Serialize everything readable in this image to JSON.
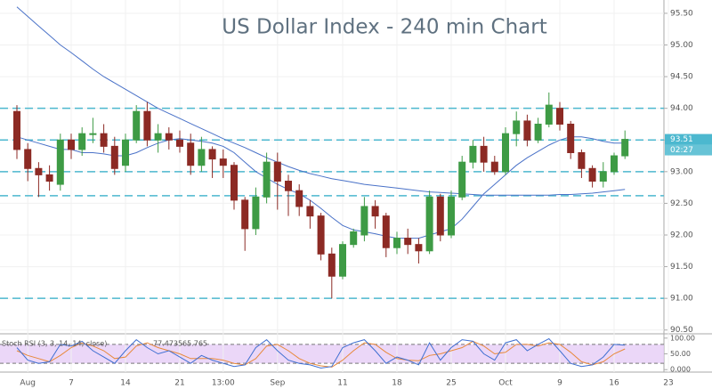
{
  "chart_data": {
    "type": "candlestick",
    "title": "US Dollar Index - 240 min Chart",
    "categories": [
      null,
      "Aug",
      null,
      null,
      null,
      "7",
      null,
      null,
      null,
      null,
      "14",
      null,
      null,
      null,
      null,
      "21",
      null,
      null,
      null,
      "13:00",
      null,
      null,
      null,
      null,
      "Sep",
      null,
      null,
      null,
      null,
      null,
      "11",
      null,
      null,
      null,
      null,
      "18",
      null,
      null,
      null,
      null,
      "25",
      null,
      null,
      null,
      null,
      "Oct",
      null,
      null,
      null,
      null,
      "9",
      null,
      null,
      null,
      null,
      "16",
      null,
      null,
      null,
      null,
      "23"
    ],
    "open": [
      93.95,
      93.35,
      93.05,
      92.95,
      92.8,
      93.5,
      93.35,
      93.6,
      93.6,
      93.4,
      93.1,
      93.5,
      93.95,
      93.5,
      93.6,
      93.5,
      93.45,
      93.1,
      93.35,
      93.2,
      93.1,
      92.55,
      92.1,
      92.6,
      93.15,
      92.85,
      92.7,
      92.45,
      92.3,
      91.7,
      91.35,
      91.85,
      92.0,
      92.45,
      92.3,
      91.8,
      91.95,
      91.85,
      91.75,
      92.6,
      92.0,
      92.6,
      93.15,
      93.4,
      93.15,
      93.0,
      93.6,
      93.8,
      93.5,
      93.75,
      94.0,
      93.75,
      93.3,
      93.05,
      92.85,
      93.0,
      93.25,
      null,
      null,
      null,
      null
    ],
    "high": [
      94.05,
      93.45,
      93.15,
      93.1,
      93.6,
      93.6,
      93.7,
      93.85,
      93.75,
      93.55,
      93.6,
      94.05,
      94.1,
      93.75,
      93.7,
      93.65,
      93.6,
      93.55,
      93.4,
      93.35,
      93.15,
      92.6,
      92.75,
      93.3,
      93.3,
      92.95,
      92.8,
      92.55,
      92.35,
      91.8,
      91.9,
      92.1,
      92.6,
      92.55,
      92.35,
      92.05,
      92.1,
      91.95,
      92.7,
      92.65,
      92.7,
      93.25,
      93.5,
      93.55,
      93.25,
      93.7,
      93.95,
      93.9,
      93.85,
      94.25,
      94.1,
      93.8,
      93.35,
      93.1,
      93.15,
      93.3,
      93.65,
      null,
      null,
      null,
      null
    ],
    "low": [
      93.2,
      92.85,
      92.6,
      92.7,
      92.7,
      93.2,
      93.25,
      93.45,
      93.3,
      92.95,
      93.0,
      93.45,
      93.4,
      93.3,
      93.35,
      93.3,
      92.95,
      93.0,
      92.9,
      92.9,
      92.4,
      91.75,
      92.0,
      92.5,
      92.4,
      92.3,
      92.3,
      92.1,
      91.6,
      91.0,
      91.3,
      91.8,
      91.9,
      92.1,
      91.65,
      91.7,
      91.7,
      91.55,
      91.7,
      91.9,
      91.95,
      92.55,
      93.05,
      93.0,
      92.95,
      92.95,
      93.4,
      93.4,
      93.45,
      93.7,
      93.65,
      93.2,
      92.9,
      92.75,
      92.75,
      92.95,
      93.2,
      null,
      null,
      null,
      null
    ],
    "close": [
      93.35,
      93.05,
      92.95,
      92.85,
      93.5,
      93.35,
      93.6,
      93.6,
      93.4,
      93.05,
      93.5,
      93.95,
      93.5,
      93.6,
      93.5,
      93.4,
      93.1,
      93.35,
      93.2,
      93.1,
      92.55,
      92.1,
      92.6,
      93.15,
      92.85,
      92.7,
      92.45,
      92.3,
      91.7,
      91.35,
      91.85,
      92.05,
      92.45,
      92.3,
      91.8,
      91.95,
      91.85,
      91.75,
      92.6,
      92.0,
      92.6,
      93.15,
      93.4,
      93.15,
      93.0,
      93.6,
      93.8,
      93.5,
      93.75,
      94.05,
      93.75,
      93.3,
      93.05,
      92.85,
      93.0,
      93.25,
      93.51,
      null,
      null,
      null,
      null
    ],
    "up_color": "#3e9b45",
    "down_color": "#8c2a24",
    "ylim": [
      90.44,
      95.71
    ],
    "yticks": [
      {
        "value": 90.5,
        "label": "90.50"
      },
      {
        "value": 91.0,
        "label": "91.00"
      },
      {
        "value": 91.5,
        "label": "91.50"
      },
      {
        "value": 92.0,
        "label": "92.00"
      },
      {
        "value": 92.5,
        "label": "92.50"
      },
      {
        "value": 93.0,
        "label": "93.00"
      },
      {
        "value": 93.5,
        "label": "93.50"
      },
      {
        "value": 94.0,
        "label": "94.00"
      },
      {
        "value": 94.5,
        "label": "94.50"
      },
      {
        "value": 95.0,
        "label": "95.00"
      },
      {
        "value": 95.5,
        "label": "95.50"
      }
    ],
    "grid": true,
    "levels": [
      94.0,
      93.5,
      93.0,
      92.62,
      91.0
    ],
    "level_color": "#4cb8cf",
    "lines": [
      {
        "color": "#4a72c8",
        "values": [
          93.55,
          93.5,
          93.45,
          93.4,
          93.35,
          93.35,
          93.3,
          93.3,
          93.28,
          93.25,
          93.25,
          93.3,
          93.38,
          93.45,
          93.5,
          93.52,
          93.5,
          93.48,
          93.45,
          93.4,
          93.3,
          93.15,
          93.0,
          92.9,
          92.8,
          92.72,
          92.65,
          92.55,
          92.42,
          92.28,
          92.15,
          92.08,
          92.05,
          92.02,
          91.98,
          91.95,
          91.95,
          91.95,
          92.0,
          92.05,
          92.1,
          92.25,
          92.45,
          92.65,
          92.8,
          92.95,
          93.1,
          93.22,
          93.32,
          93.42,
          93.5,
          93.55,
          93.55,
          93.52,
          93.48,
          93.45,
          93.45,
          null,
          null,
          null,
          null
        ]
      },
      {
        "color": "#4a72c8",
        "values": [
          95.6,
          95.45,
          95.3,
          95.15,
          95.0,
          94.88,
          94.75,
          94.62,
          94.5,
          94.4,
          94.3,
          94.2,
          94.1,
          94.0,
          93.92,
          93.84,
          93.76,
          93.68,
          93.6,
          93.52,
          93.45,
          93.38,
          93.3,
          93.22,
          93.15,
          93.08,
          93.02,
          92.97,
          92.93,
          92.89,
          92.86,
          92.83,
          92.8,
          92.78,
          92.76,
          92.74,
          92.72,
          92.7,
          92.68,
          92.67,
          92.66,
          92.65,
          92.64,
          92.63,
          92.63,
          92.63,
          92.63,
          92.63,
          92.63,
          92.63,
          92.64,
          92.64,
          92.65,
          92.66,
          92.68,
          92.7,
          92.72,
          null,
          null,
          null,
          null
        ]
      }
    ],
    "last_price": 93.51,
    "countdown": "02:27",
    "indicator": {
      "name": "Stoch RSI (3, 3, 14, 14, close)",
      "ylim": [
        -5,
        108
      ],
      "yticks": [
        {
          "value": 0,
          "label": "0.000"
        },
        {
          "value": 50,
          "label": "50.00"
        },
        {
          "value": 100,
          "label": "100.00"
        }
      ],
      "band": [
        20,
        80
      ],
      "band_color": "#e6cdf6",
      "k": {
        "color": "#3f6fd1",
        "values": [
          70,
          30,
          20,
          25,
          80,
          75,
          90,
          60,
          40,
          20,
          60,
          95,
          70,
          50,
          60,
          40,
          20,
          45,
          30,
          20,
          10,
          15,
          70,
          95,
          60,
          30,
          20,
          15,
          5,
          10,
          70,
          85,
          95,
          60,
          20,
          40,
          30,
          15,
          85,
          30,
          70,
          95,
          90,
          50,
          30,
          85,
          95,
          60,
          80,
          98,
          60,
          20,
          10,
          15,
          40,
          80,
          77.4735,
          null,
          null,
          null,
          null
        ]
      },
      "d": {
        "color": "#e8893a",
        "values": [
          60,
          45,
          35,
          25,
          45,
          70,
          85,
          75,
          60,
          35,
          40,
          75,
          85,
          70,
          60,
          50,
          35,
          35,
          35,
          30,
          20,
          15,
          35,
          75,
          80,
          60,
          35,
          20,
          12,
          8,
          30,
          60,
          85,
          80,
          55,
          35,
          30,
          28,
          45,
          50,
          60,
          70,
          90,
          75,
          50,
          55,
          80,
          80,
          75,
          85,
          80,
          55,
          25,
          15,
          25,
          50,
          65.765,
          null,
          null,
          null,
          null
        ]
      }
    }
  }
}
